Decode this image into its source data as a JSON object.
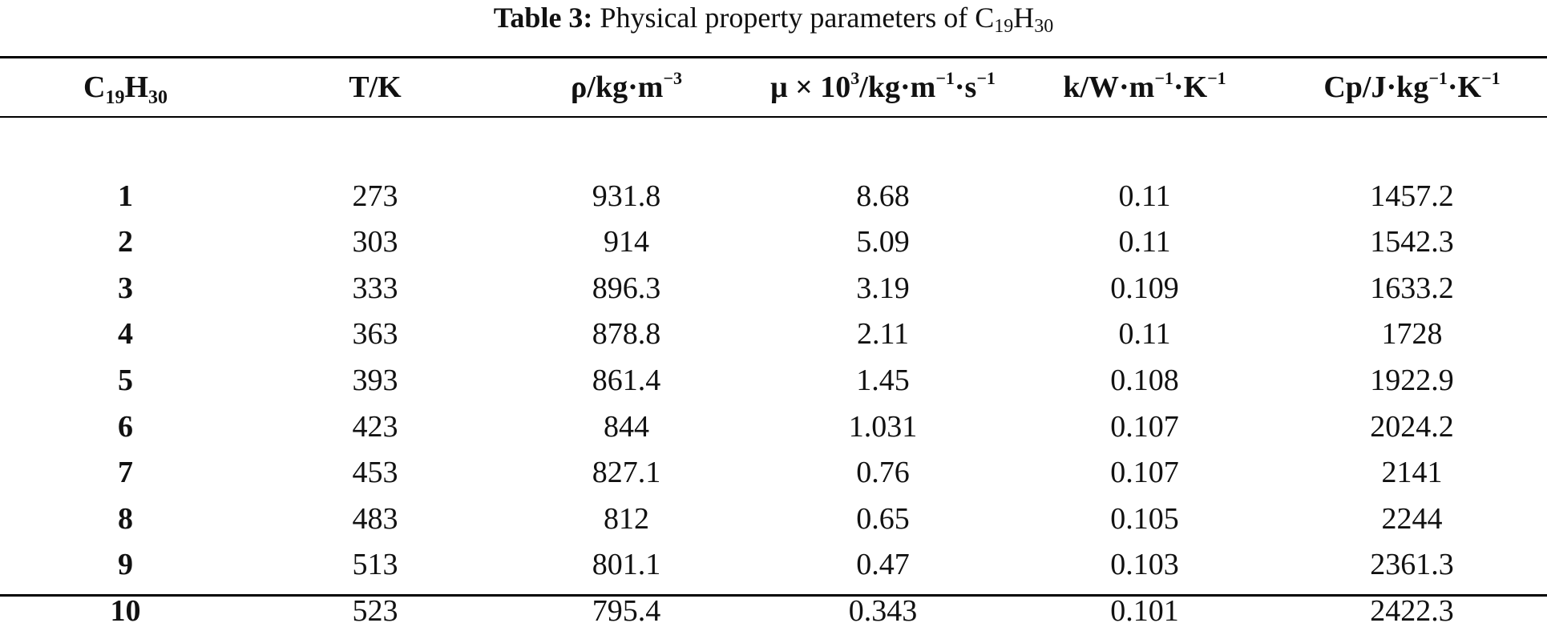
{
  "caption": {
    "label": "Table 3:",
    "text": "Physical property parameters of C",
    "sub1": "19",
    "mid": "H",
    "sub2": "30"
  },
  "headers": {
    "col1": {
      "base": "C",
      "sub1": "19",
      "mid": "H",
      "sub2": "30"
    },
    "col2": {
      "text": "T/K"
    },
    "col3": {
      "pre": "ρ/kg·m",
      "sup1": "−3"
    },
    "col4": {
      "pre": "μ × 10",
      "sup1": "3",
      "mid": "/kg·m",
      "sup2": "−1",
      "mid2": "·s",
      "sup3": "−1"
    },
    "col5": {
      "pre": "k/W·m",
      "sup1": "−1",
      "mid": "·K",
      "sup2": "−1"
    },
    "col6": {
      "pre": "Cp/J·kg",
      "sup1": "−1",
      "mid": "·K",
      "sup2": "−1"
    }
  },
  "rows": [
    [
      "1",
      "273",
      "931.8",
      "8.68",
      "0.11",
      "1457.2"
    ],
    [
      "2",
      "303",
      "914",
      "5.09",
      "0.11",
      "1542.3"
    ],
    [
      "3",
      "333",
      "896.3",
      "3.19",
      "0.109",
      "1633.2"
    ],
    [
      "4",
      "363",
      "878.8",
      "2.11",
      "0.11",
      "1728"
    ],
    [
      "5",
      "393",
      "861.4",
      "1.45",
      "0.108",
      "1922.9"
    ],
    [
      "6",
      "423",
      "844",
      "1.031",
      "0.107",
      "2024.2"
    ],
    [
      "7",
      "453",
      "827.1",
      "0.76",
      "0.107",
      "2141"
    ],
    [
      "8",
      "483",
      "812",
      "0.65",
      "0.105",
      "2244"
    ],
    [
      "9",
      "513",
      "801.1",
      "0.47",
      "0.103",
      "2361.3"
    ],
    [
      "10",
      "523",
      "795.4",
      "0.343",
      "0.101",
      "2422.3"
    ]
  ]
}
